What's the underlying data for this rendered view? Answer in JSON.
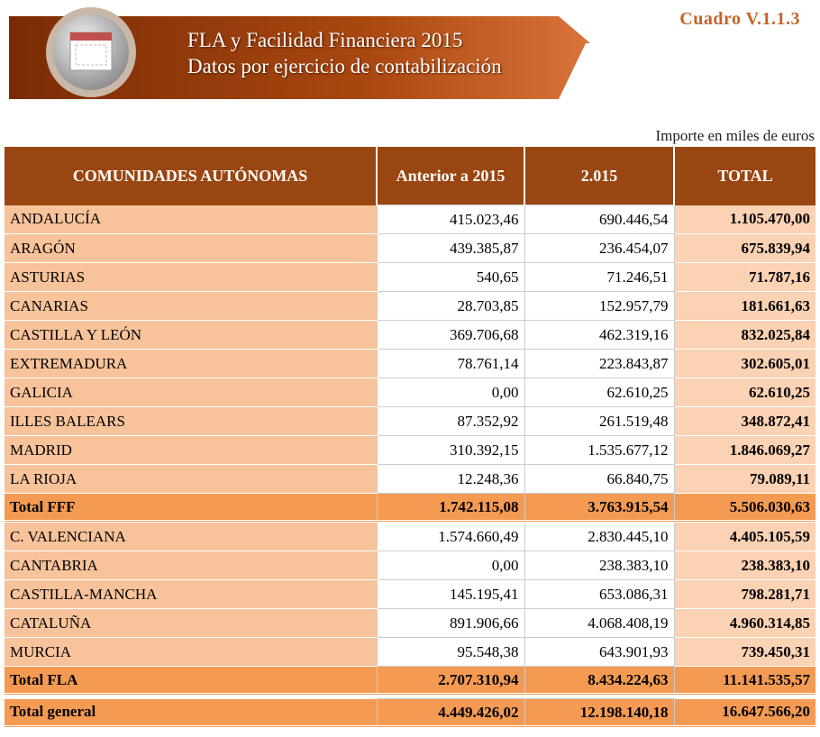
{
  "header": {
    "title": "FLA y Facilidad Financiera 2015",
    "subtitle": "Datos por ejercicio de contabilización",
    "code": "Cuadro V.1.1.3"
  },
  "unit": "Importe en miles de euros",
  "table": {
    "columns": [
      "COMUNIDADES AUTÓNOMAS",
      "Anterior a 2015",
      "2.015",
      "TOTAL"
    ],
    "rows": [
      [
        "ANDALUCÍA",
        "415.023,46",
        "690.446,54",
        "1.105.470,00"
      ],
      [
        "ARAGÓN",
        "439.385,87",
        "236.454,07",
        "675.839,94"
      ],
      [
        "ASTURIAS",
        "540,65",
        "71.246,51",
        "71.787,16"
      ],
      [
        "CANARIAS",
        "28.703,85",
        "152.957,79",
        "181.661,63"
      ],
      [
        "CASTILLA Y LEÓN",
        "369.706,68",
        "462.319,16",
        "832.025,84"
      ],
      [
        "EXTREMADURA",
        "78.761,14",
        "223.843,87",
        "302.605,01"
      ],
      [
        "GALICIA",
        "0,00",
        "62.610,25",
        "62.610,25"
      ],
      [
        "ILLES BALEARS",
        "87.352,92",
        "261.519,48",
        "348.872,41"
      ],
      [
        "MADRID",
        "310.392,15",
        "1.535.677,12",
        "1.846.069,27"
      ],
      [
        "LA RIOJA",
        "12.248,36",
        "66.840,75",
        "79.089,11"
      ],
      [
        "Total FFF",
        "1.742.115,08",
        "3.763.915,54",
        "5.506.030,63"
      ],
      [
        "C. VALENCIANA",
        "1.574.660,49",
        "2.830.445,10",
        "4.405.105,59"
      ],
      [
        "CANTABRIA",
        "0,00",
        "238.383,10",
        "238.383,10"
      ],
      [
        "CASTILLA-MANCHA",
        "145.195,41",
        "653.086,31",
        "798.281,71"
      ],
      [
        "CATALUÑA",
        "891.906,66",
        "4.068.408,19",
        "4.960.314,85"
      ],
      [
        "MURCIA",
        "95.548,38",
        "643.901,93",
        "739.450,31"
      ],
      [
        "Total FLA",
        "2.707.310,94",
        "8.434.224,63",
        "11.141.535,57"
      ],
      [
        "Total general",
        "4.449.426,02",
        "12.198.140,18",
        "16.647.566,20"
      ]
    ]
  }
}
